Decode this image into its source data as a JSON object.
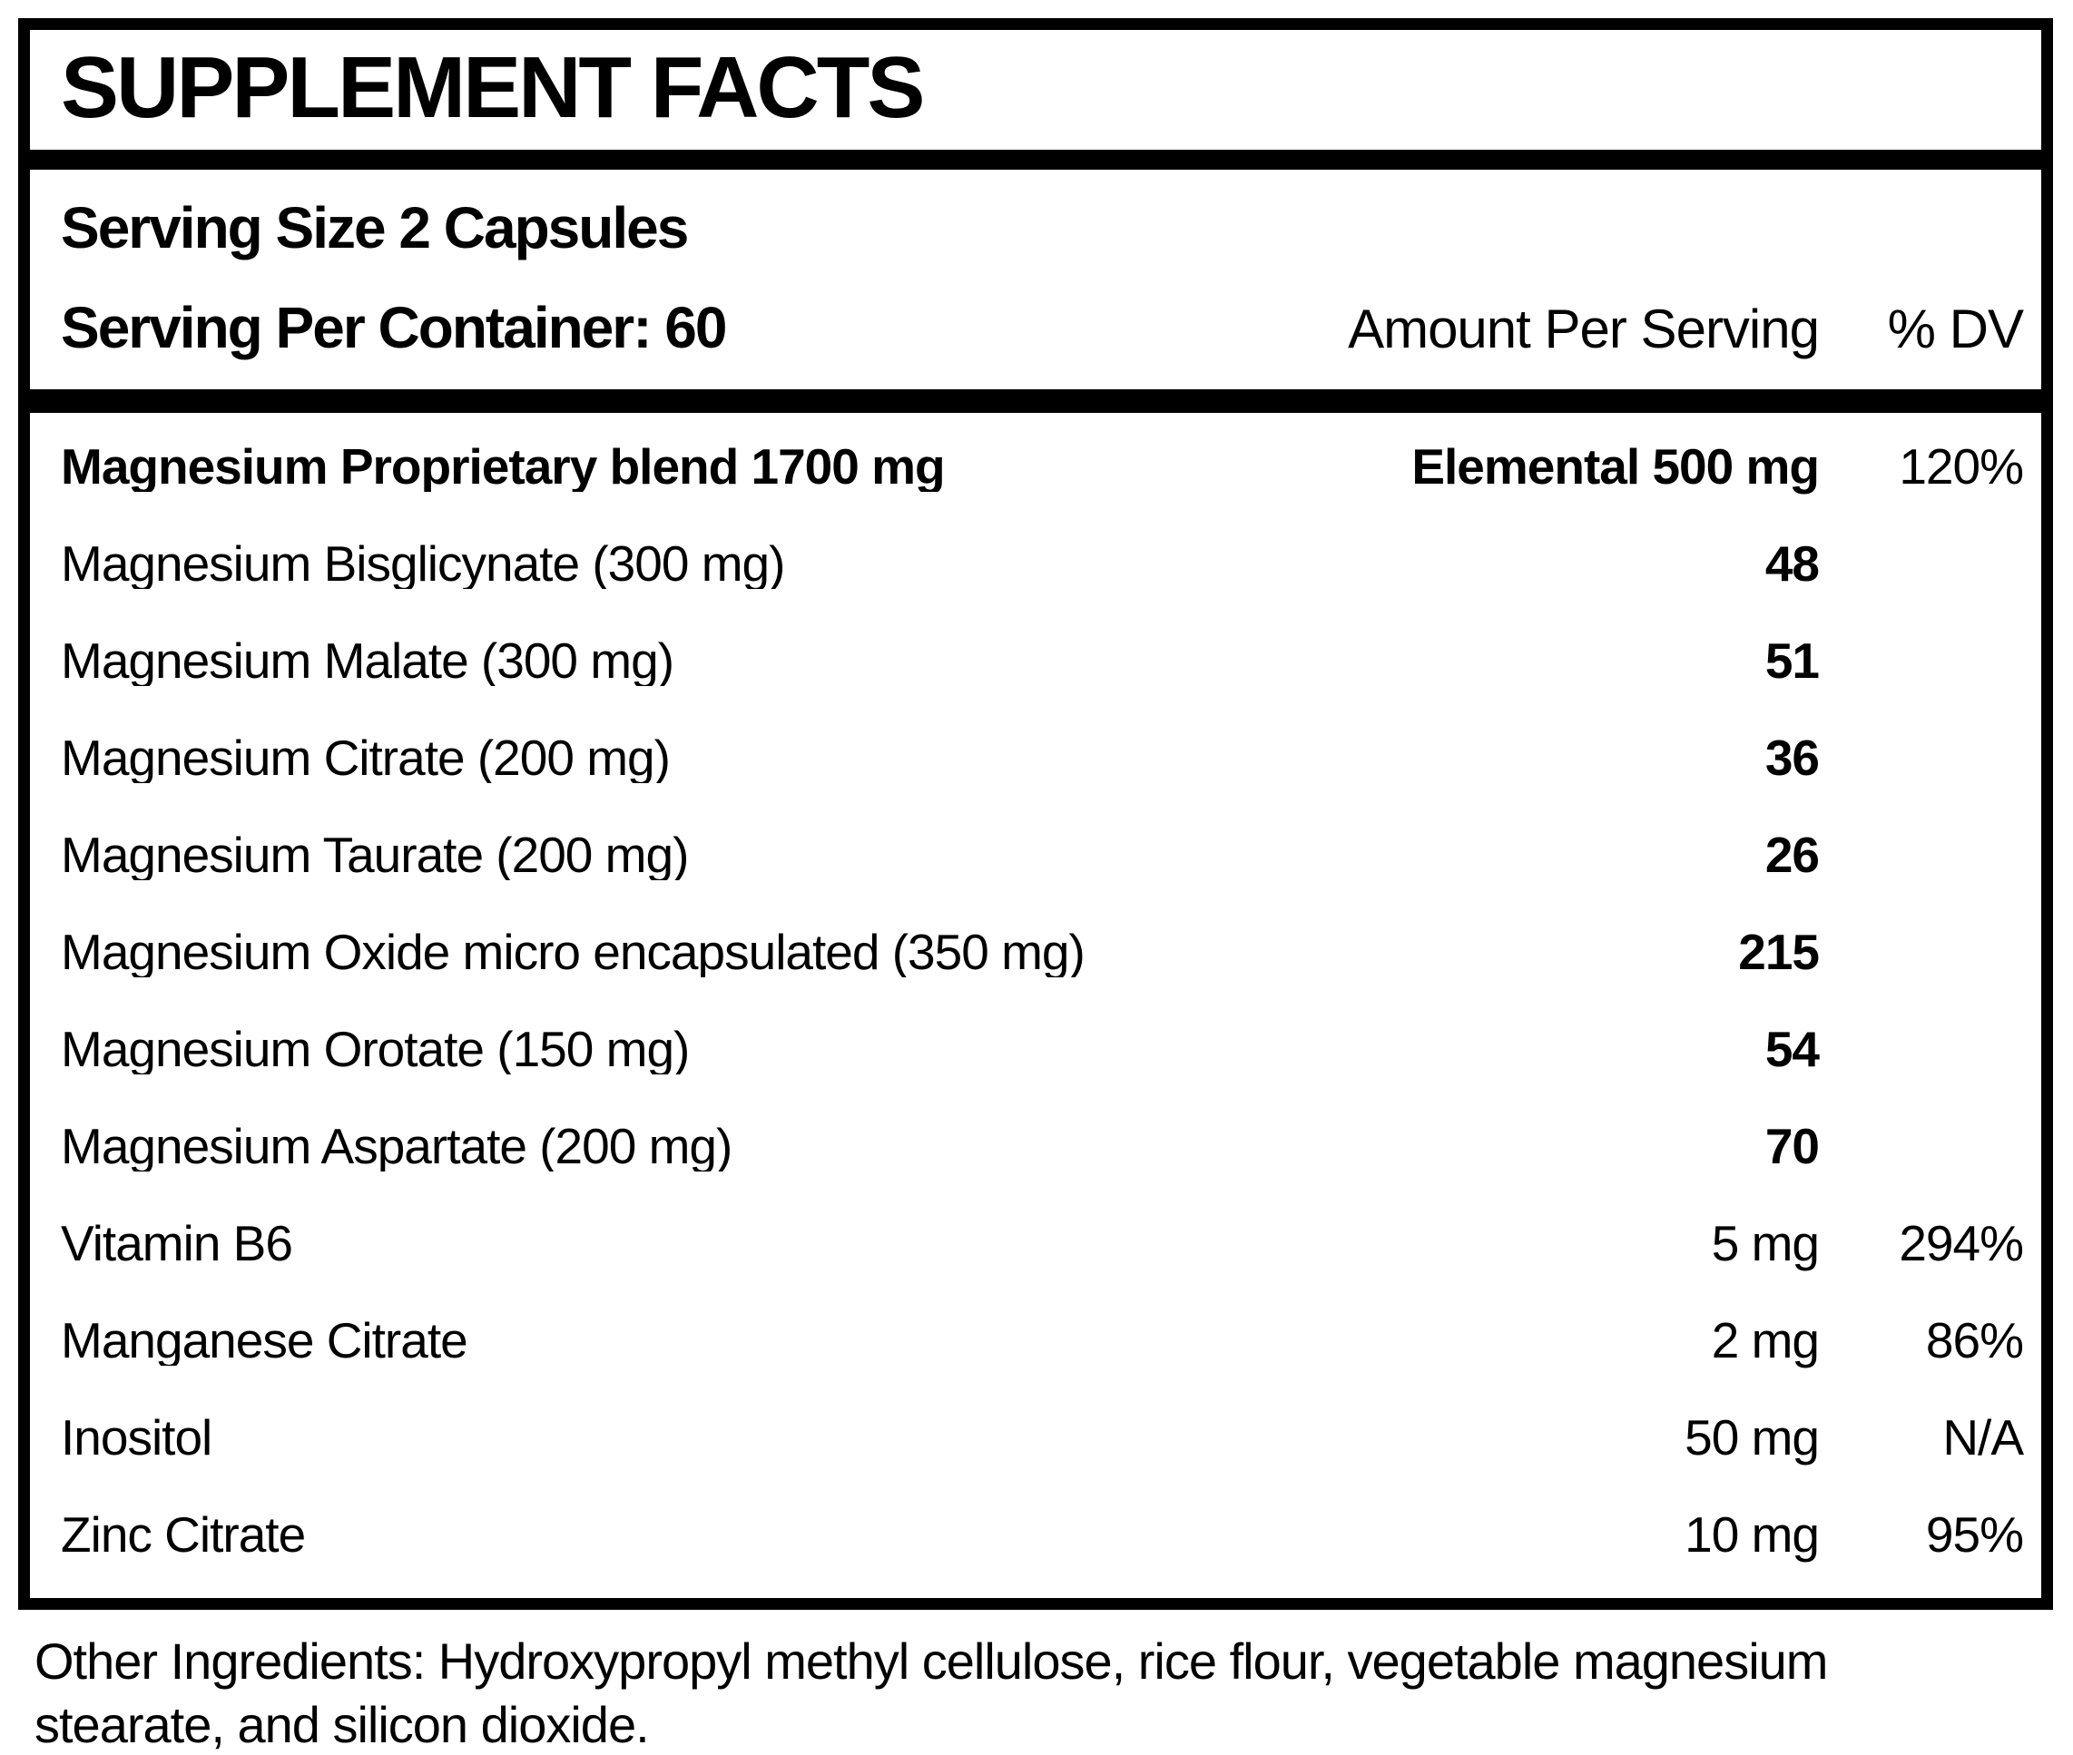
{
  "header": {
    "title": "SUPPLEMENT FACTS"
  },
  "serving": {
    "size": "Serving Size 2 Capsules",
    "per_container": "Serving Per Container: 60"
  },
  "columns": {
    "amount": "Amount Per Serving",
    "dv": "% DV"
  },
  "table": {
    "rows": [
      {
        "name": "Magnesium Proprietary blend 1700 mg",
        "amount": "Elemental 500 mg",
        "dv": "120%"
      },
      {
        "name": "Magnesium Bisglicynate (300 mg)",
        "amount": "48",
        "dv": ""
      },
      {
        "name": "Magnesium Malate (300 mg)",
        "amount": "51",
        "dv": ""
      },
      {
        "name": "Magnesium Citrate (200 mg)",
        "amount": "36",
        "dv": ""
      },
      {
        "name": "Magnesium Taurate (200 mg)",
        "amount": "26",
        "dv": ""
      },
      {
        "name": "Magnesium Oxide micro encapsulated (350 mg)",
        "amount": "215",
        "dv": ""
      },
      {
        "name": "Magnesium Orotate (150 mg)",
        "amount": "54",
        "dv": ""
      },
      {
        "name": "Magnesium Aspartate (200 mg)",
        "amount": "70",
        "dv": ""
      },
      {
        "name": "Vitamin B6",
        "amount": "5 mg",
        "dv": "294%"
      },
      {
        "name": "Manganese Citrate",
        "amount": "2 mg",
        "dv": "86%"
      },
      {
        "name": "Inositol",
        "amount": "50 mg",
        "dv": "N/A"
      },
      {
        "name": "Zinc Citrate",
        "amount": "10 mg",
        "dv": "95%"
      }
    ]
  },
  "footer": {
    "other_ingredients": "Other Ingredients: Hydroxypropyl methyl cellulose, rice flour, vegetable magnesium stearate, and silicon dioxide."
  },
  "colors": {
    "text": "#000000",
    "background": "#ffffff",
    "border": "#000000"
  }
}
